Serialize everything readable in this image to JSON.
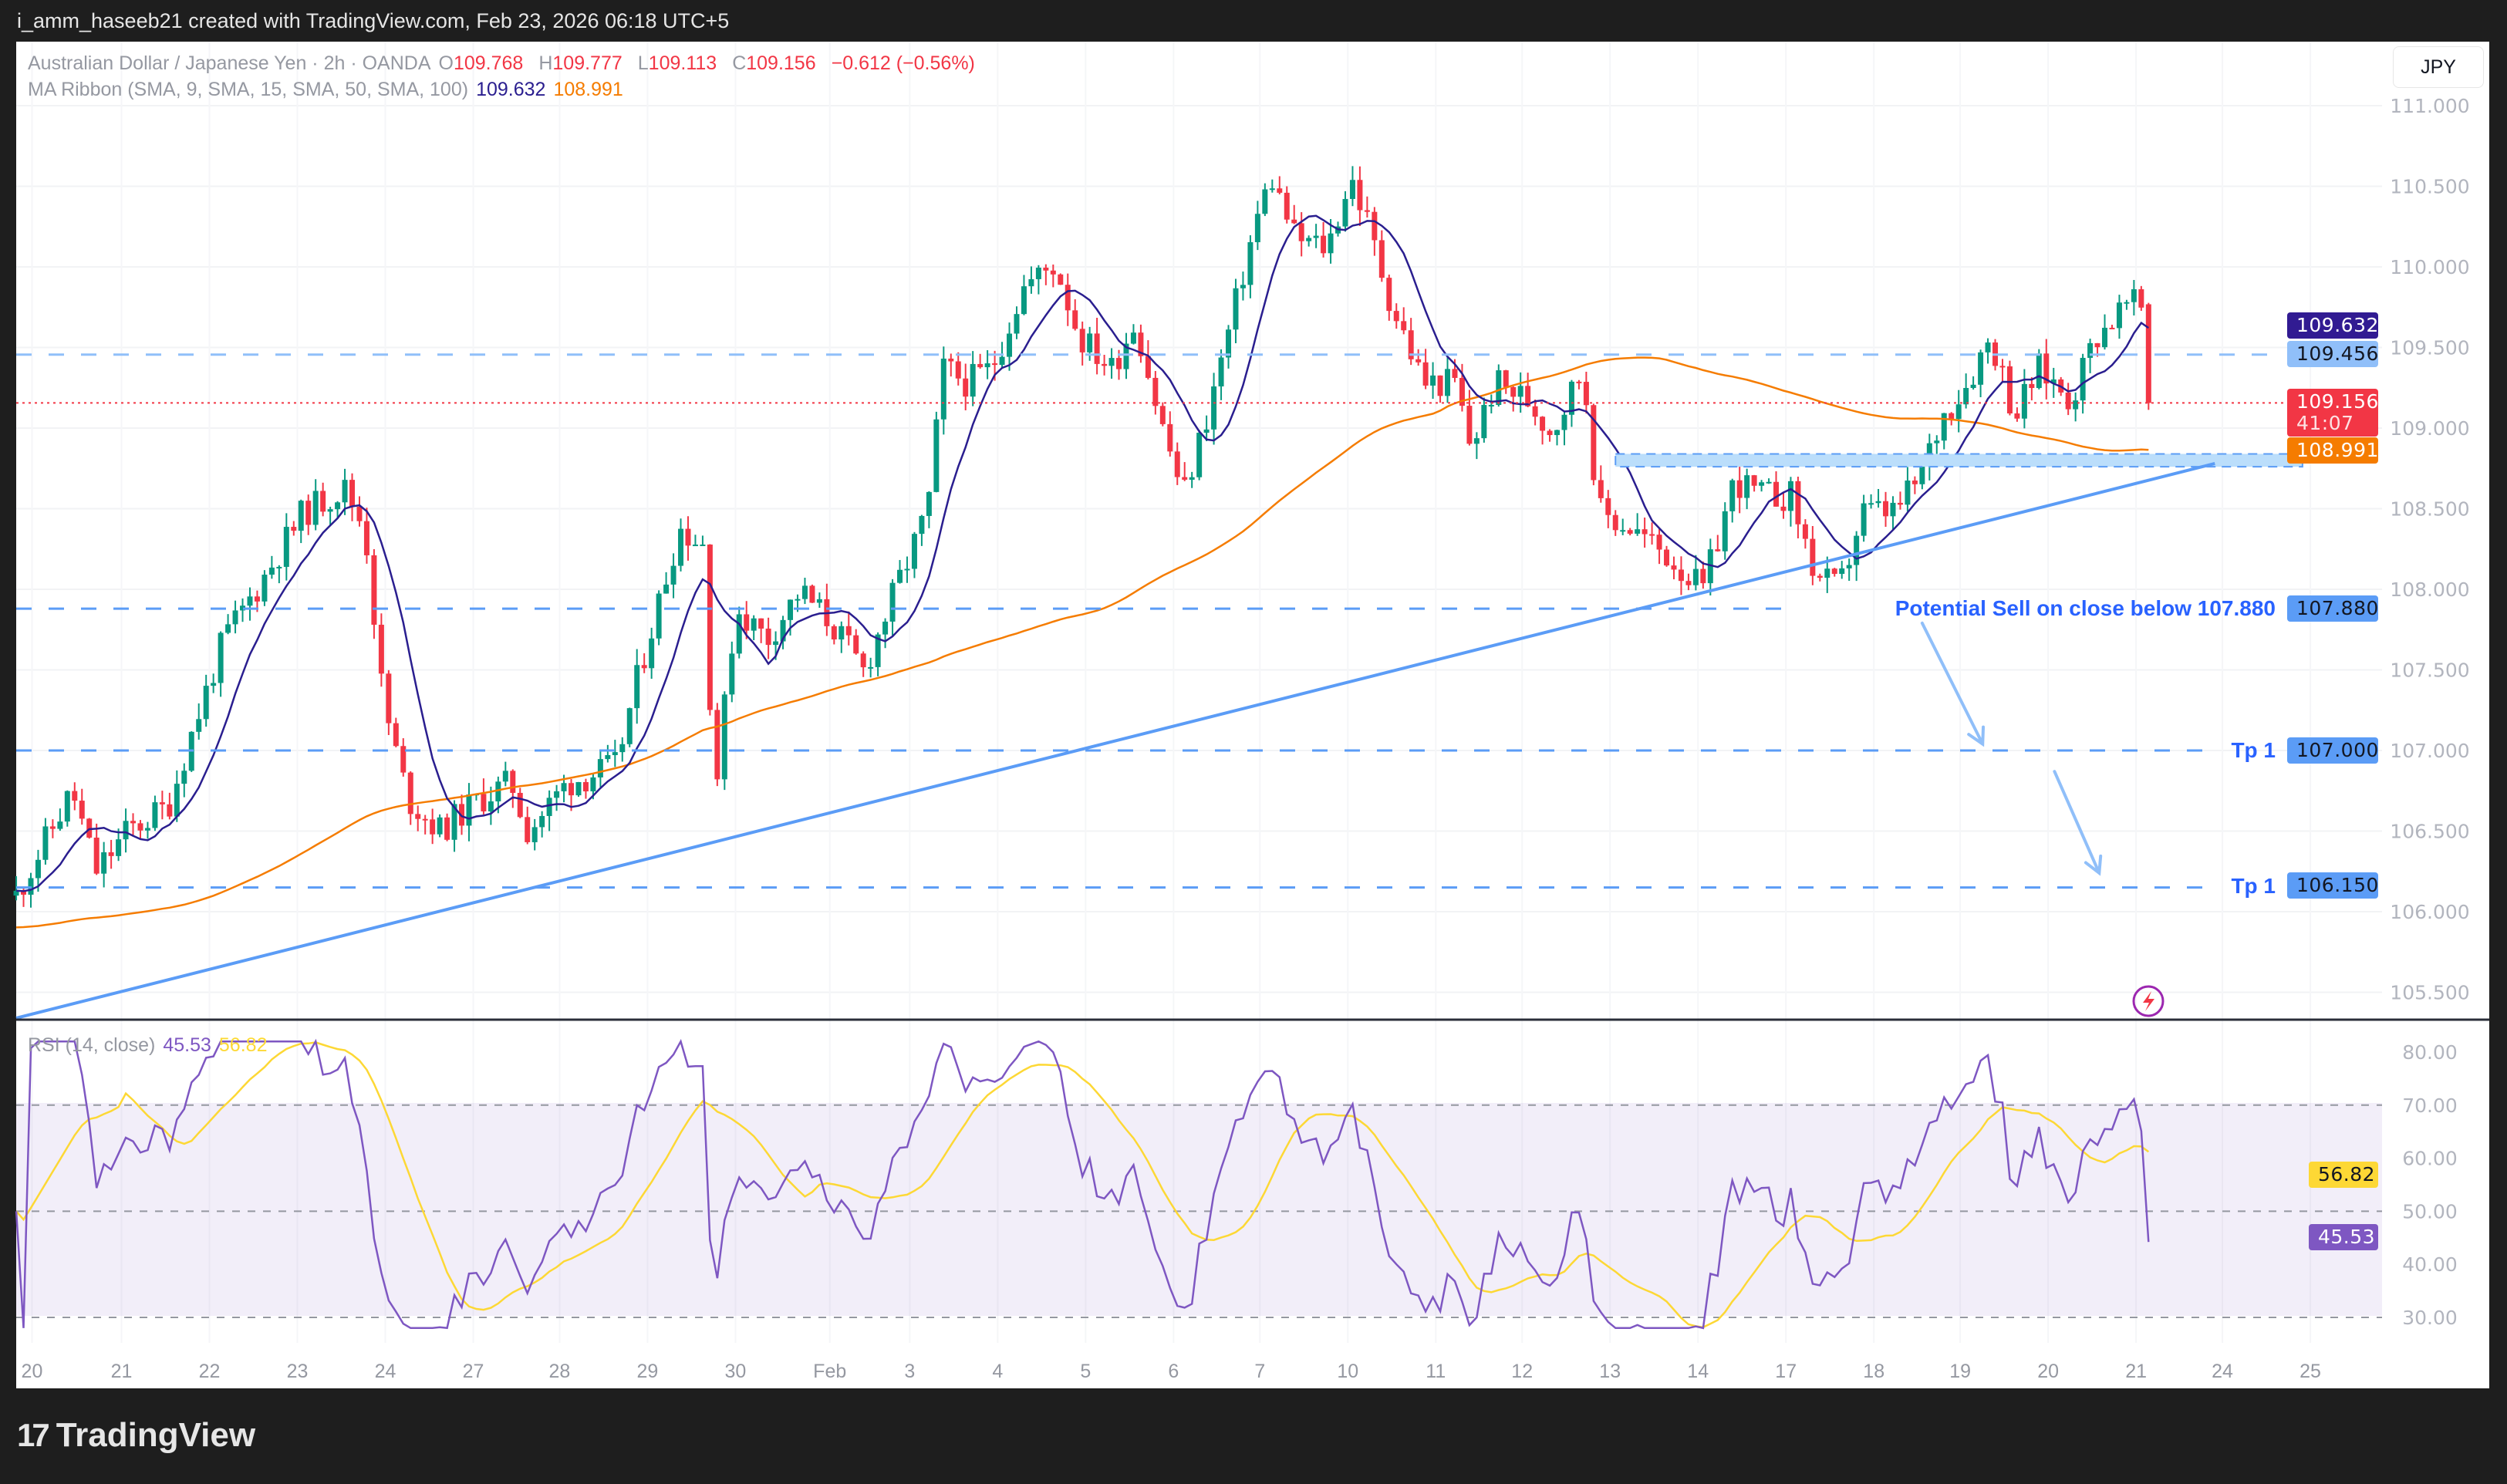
{
  "topbar": {
    "credit": "i_amm_haseeb21 created with TradingView.com, Feb 23, 2026 06:18 UTC+5"
  },
  "legend": {
    "symbol": "Australian Dollar / Japanese Yen · 2h · OANDA",
    "o_label": "O",
    "o": "109.768",
    "h_label": "H",
    "h": "109.777",
    "l_label": "L",
    "l": "109.113",
    "c_label": "C",
    "c": "109.156",
    "change": "−0.612 (−0.56%)",
    "ma_title": "MA Ribbon (SMA, 9, SMA, 15, SMA, 50, SMA, 100)",
    "ma_fast": "109.632",
    "ma_slow": "108.991",
    "rsi_title": "RSI (14, close)",
    "rsi_value": "45.53",
    "rsi_ma": "56.82"
  },
  "currency_button": "JPY",
  "badges": {
    "ma_fast": "109.632",
    "level": "109.456",
    "last_price": "109.156",
    "countdown": "41:07",
    "ma_slow": "108.991",
    "sell_level": "107.880",
    "tp1": "107.000",
    "tp2": "106.150",
    "rsi_ma": "56.82",
    "rsi": "45.53"
  },
  "annotations": {
    "sell_text": "Potential Sell on close below 107.880",
    "tp1_text": "Tp 1",
    "tp2_text": "Tp 1"
  },
  "price_axis": [
    "111.000",
    "110.500",
    "110.000",
    "109.500",
    "109.000",
    "108.500",
    "108.000",
    "107.500",
    "107.000",
    "106.500",
    "106.000",
    "105.500"
  ],
  "rsi_axis": [
    "80.00",
    "70.00",
    "60.00",
    "50.00",
    "40.00",
    "30.00"
  ],
  "time_axis": [
    "20",
    "21",
    "22",
    "23",
    "24",
    "27",
    "28",
    "29",
    "30",
    "Feb",
    "3",
    "4",
    "5",
    "6",
    "7",
    "10",
    "11",
    "12",
    "13",
    "14",
    "17",
    "18",
    "19",
    "20",
    "21",
    "24",
    "25"
  ],
  "footer": {
    "brand": "TradingView"
  },
  "colors": {
    "up": "#089981",
    "down": "#f23645",
    "ma_fast": "#2a1e8f",
    "ma_slow": "#f57c00",
    "rsi": "#7e57c2",
    "rsi_ma": "#fdd835",
    "drawing": "#5b9cf6",
    "text_blue": "#2962ff"
  },
  "chart_data": {
    "type": "candlestick",
    "title": "Australian Dollar / Japanese Yen · 2h · OANDA",
    "ylim": [
      105.35,
      111.3
    ],
    "rsi_ylim": [
      27,
      83
    ],
    "rsi_bands": [
      30,
      50,
      70
    ],
    "last_candle": {
      "o": 109.768,
      "h": 109.777,
      "l": 109.113,
      "c": 109.156
    },
    "close_waypoints_day_price": [
      [
        -0.18,
        106.1
      ],
      [
        0.46,
        106.75
      ],
      [
        0.73,
        106.25
      ],
      [
        1.09,
        106.5
      ],
      [
        1.55,
        106.65
      ],
      [
        1.82,
        107.1
      ],
      [
        2.19,
        107.69
      ],
      [
        2.55,
        107.99
      ],
      [
        3.1,
        108.48
      ],
      [
        3.56,
        108.63
      ],
      [
        3.8,
        108.38
      ],
      [
        4.01,
        107.29
      ],
      [
        4.29,
        106.7
      ],
      [
        4.65,
        106.5
      ],
      [
        5.11,
        106.7
      ],
      [
        5.47,
        106.8
      ],
      [
        5.66,
        106.5
      ],
      [
        6.11,
        106.8
      ],
      [
        6.66,
        106.9
      ],
      [
        6.93,
        107.49
      ],
      [
        7.39,
        108.38
      ],
      [
        7.66,
        108.28
      ],
      [
        7.79,
        106.7
      ],
      [
        8.03,
        107.89
      ],
      [
        8.39,
        107.69
      ],
      [
        8.76,
        107.99
      ],
      [
        9.12,
        107.79
      ],
      [
        9.49,
        107.49
      ],
      [
        9.85,
        107.99
      ],
      [
        10.22,
        108.48
      ],
      [
        10.4,
        109.37
      ],
      [
        10.68,
        109.28
      ],
      [
        10.95,
        109.37
      ],
      [
        11.31,
        109.87
      ],
      [
        11.68,
        110.02
      ],
      [
        11.95,
        109.57
      ],
      [
        12.32,
        109.37
      ],
      [
        12.59,
        109.67
      ],
      [
        12.86,
        109.08
      ],
      [
        13.14,
        108.58
      ],
      [
        13.41,
        109.08
      ],
      [
        13.69,
        109.67
      ],
      [
        13.96,
        110.27
      ],
      [
        14.14,
        110.56
      ],
      [
        14.42,
        110.17
      ],
      [
        14.78,
        110.12
      ],
      [
        15.05,
        110.56
      ],
      [
        15.24,
        110.27
      ],
      [
        15.51,
        109.77
      ],
      [
        15.88,
        109.28
      ],
      [
        16.24,
        109.28
      ],
      [
        16.42,
        108.88
      ],
      [
        16.7,
        109.28
      ],
      [
        17.06,
        109.18
      ],
      [
        17.34,
        108.98
      ],
      [
        17.7,
        109.37
      ],
      [
        17.88,
        108.48
      ],
      [
        18.25,
        108.38
      ],
      [
        18.7,
        108.19
      ],
      [
        19.07,
        107.99
      ],
      [
        19.43,
        108.68
      ],
      [
        19.71,
        108.58
      ],
      [
        20.07,
        108.58
      ],
      [
        20.35,
        108.09
      ],
      [
        20.62,
        107.99
      ],
      [
        20.89,
        108.48
      ],
      [
        21.26,
        108.48
      ],
      [
        21.53,
        108.68
      ],
      [
        21.81,
        109.08
      ],
      [
        22.08,
        109.28
      ],
      [
        22.35,
        109.57
      ],
      [
        22.63,
        109.08
      ],
      [
        22.9,
        109.37
      ],
      [
        23.27,
        109.18
      ],
      [
        23.54,
        109.57
      ],
      [
        23.91,
        109.77
      ],
      [
        24.09,
        109.75
      ],
      [
        24.18,
        109.156
      ]
    ],
    "moving_averages": [
      {
        "name": "SMA 9",
        "last": 109.632
      },
      {
        "name": "SMA 100",
        "last": 108.991
      }
    ],
    "rsi": {
      "period": 14,
      "last": 45.53,
      "ma_last": 56.82
    },
    "drawings": {
      "trendline": [
        [
          -0.18,
          105.34
        ],
        [
          24.91,
          108.78
        ]
      ],
      "horizontal_levels": [
        109.456,
        107.88,
        107.0,
        106.15
      ],
      "last_price_line": 109.156,
      "resistance_zone": {
        "from_day": 18.07,
        "to_day": 25.91,
        "low": 108.76,
        "high": 108.84
      },
      "arrows": [
        [
          [
            21.57,
            107.79
          ],
          [
            22.26,
            107.04
          ]
        ],
        [
          [
            23.08,
            106.87
          ],
          [
            23.59,
            106.24
          ]
        ]
      ]
    }
  }
}
